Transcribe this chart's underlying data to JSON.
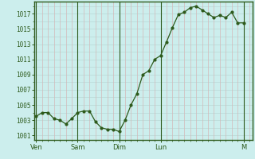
{
  "x": [
    0,
    1,
    2,
    3,
    4,
    5,
    6,
    7,
    8,
    9,
    10,
    11,
    12,
    13,
    14,
    15,
    16,
    17,
    18,
    19,
    20,
    21,
    22,
    23,
    24,
    25,
    26,
    27,
    28,
    29,
    30,
    31,
    32,
    33,
    34,
    35
  ],
  "y": [
    1003.5,
    1004.0,
    1004.0,
    1003.2,
    1003.0,
    1002.5,
    1003.2,
    1004.0,
    1004.2,
    1004.2,
    1002.8,
    1002.0,
    1001.8,
    1001.8,
    1001.5,
    1003.0,
    1005.0,
    1006.5,
    1009.0,
    1009.5,
    1011.0,
    1011.5,
    1013.3,
    1015.2,
    1016.9,
    1017.2,
    1017.8,
    1018.0,
    1017.5,
    1017.0,
    1016.5,
    1016.8,
    1016.5,
    1017.2,
    1015.8,
    1015.8
  ],
  "day_labels": [
    "Ven",
    "Sam",
    "Dim",
    "Lun",
    "M"
  ],
  "day_positions": [
    0,
    7,
    14,
    21,
    35
  ],
  "background_color": "#cceeed",
  "line_color": "#2d5a1b",
  "marker_color": "#2d5a1b",
  "grid_color": "#b8d8d5",
  "grid_red_color": "#d4b8b8",
  "axis_color": "#2d5a1b",
  "tick_color": "#2d5a1b",
  "ytick_values": [
    1001,
    1003,
    1005,
    1007,
    1009,
    1011,
    1013,
    1015,
    1017
  ],
  "ylim": [
    1000.4,
    1018.6
  ],
  "xlim": [
    -0.3,
    36.5
  ]
}
